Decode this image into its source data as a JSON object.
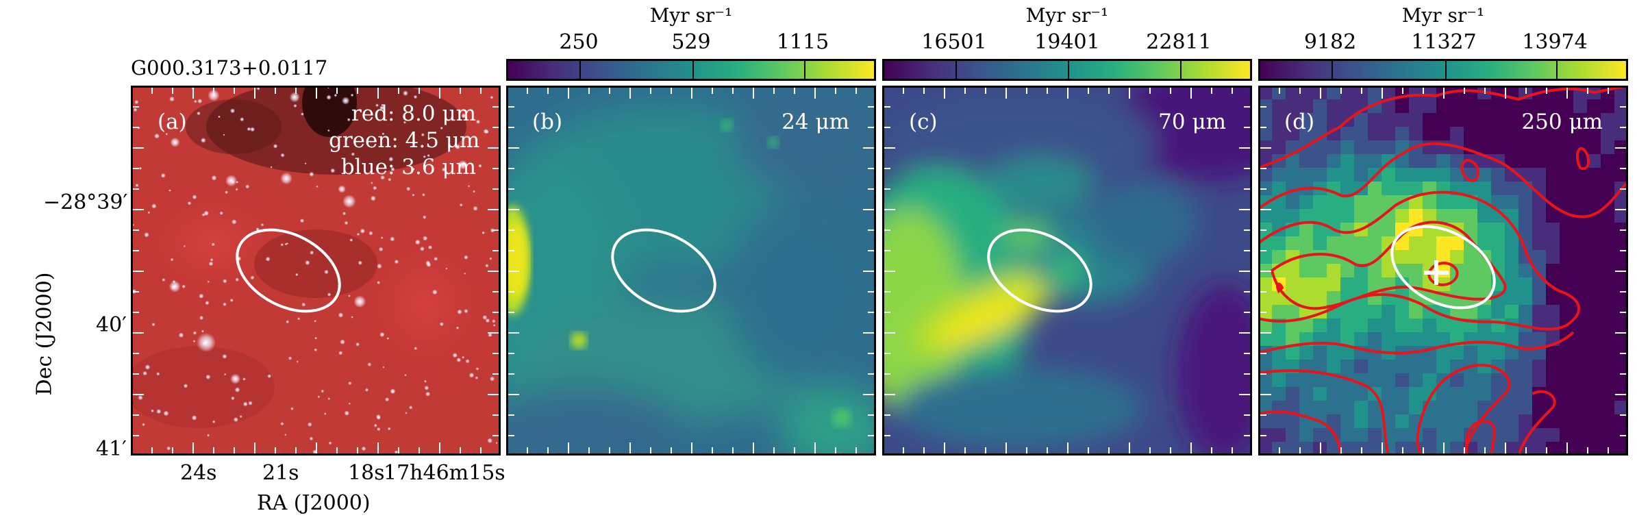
{
  "source_name": "G000.3173+0.0117",
  "panels": [
    {
      "id": "a",
      "label": "(a)",
      "bands": [
        "red: 8.0 μm",
        "green: 4.5 μm",
        "blue: 3.6 μm"
      ]
    },
    {
      "id": "b",
      "label": "(b)",
      "wavelength": "24 μm",
      "colorbar": {
        "unit": "Myr sr⁻¹",
        "ticks": [
          "250",
          "529",
          "1115"
        ]
      }
    },
    {
      "id": "c",
      "label": "(c)",
      "wavelength": "70 μm",
      "colorbar": {
        "unit": "Myr sr⁻¹",
        "ticks": [
          "16501",
          "19401",
          "22811"
        ]
      }
    },
    {
      "id": "d",
      "label": "(d)",
      "wavelength": "250 μm",
      "colorbar": {
        "unit": "Myr sr⁻¹",
        "ticks": [
          "9182",
          "11327",
          "13974"
        ]
      }
    }
  ],
  "axes": {
    "xlabel": "RA (J2000)",
    "ylabel": "Dec (J2000)",
    "x_ticks": [
      "24s",
      "21s",
      "18s",
      "17h46m15s"
    ],
    "y_ticks": [
      "−28°39′",
      "40′",
      "41′"
    ]
  },
  "colors": {
    "ellipse": "#ffffff",
    "contours": "#e8141c",
    "cross": "#ffffff",
    "colormap": "viridis"
  }
}
